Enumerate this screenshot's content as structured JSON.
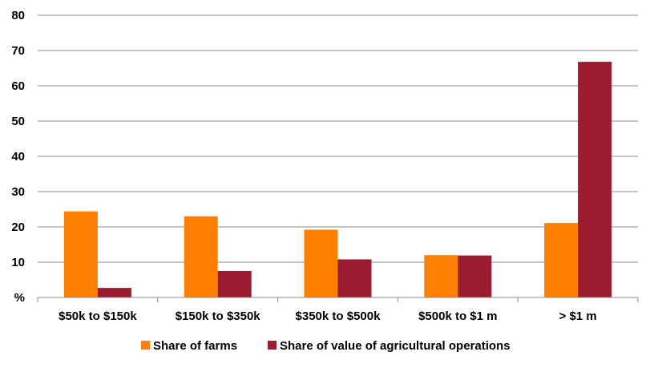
{
  "chart_data": {
    "type": "bar",
    "title": "",
    "xlabel": "",
    "ylabel": "",
    "y_ticks": [
      "%",
      "10",
      "20",
      "30",
      "40",
      "50",
      "60",
      "70",
      "80"
    ],
    "ylim": [
      0,
      80
    ],
    "grid": true,
    "legend_position": "bottom",
    "categories": [
      "$50k to $150k",
      "$150k to $350k",
      "$350k to $500k",
      "$500k to $1 m",
      "> $1 m"
    ],
    "series": [
      {
        "name": "Share of farms",
        "color": "#ff7f00",
        "values": [
          24.4,
          23.0,
          19.2,
          12.0,
          21.1
        ]
      },
      {
        "name": "Share of value of agricultural operations",
        "color": "#9b1b30",
        "values": [
          2.7,
          7.5,
          10.8,
          11.9,
          66.8
        ]
      }
    ]
  }
}
